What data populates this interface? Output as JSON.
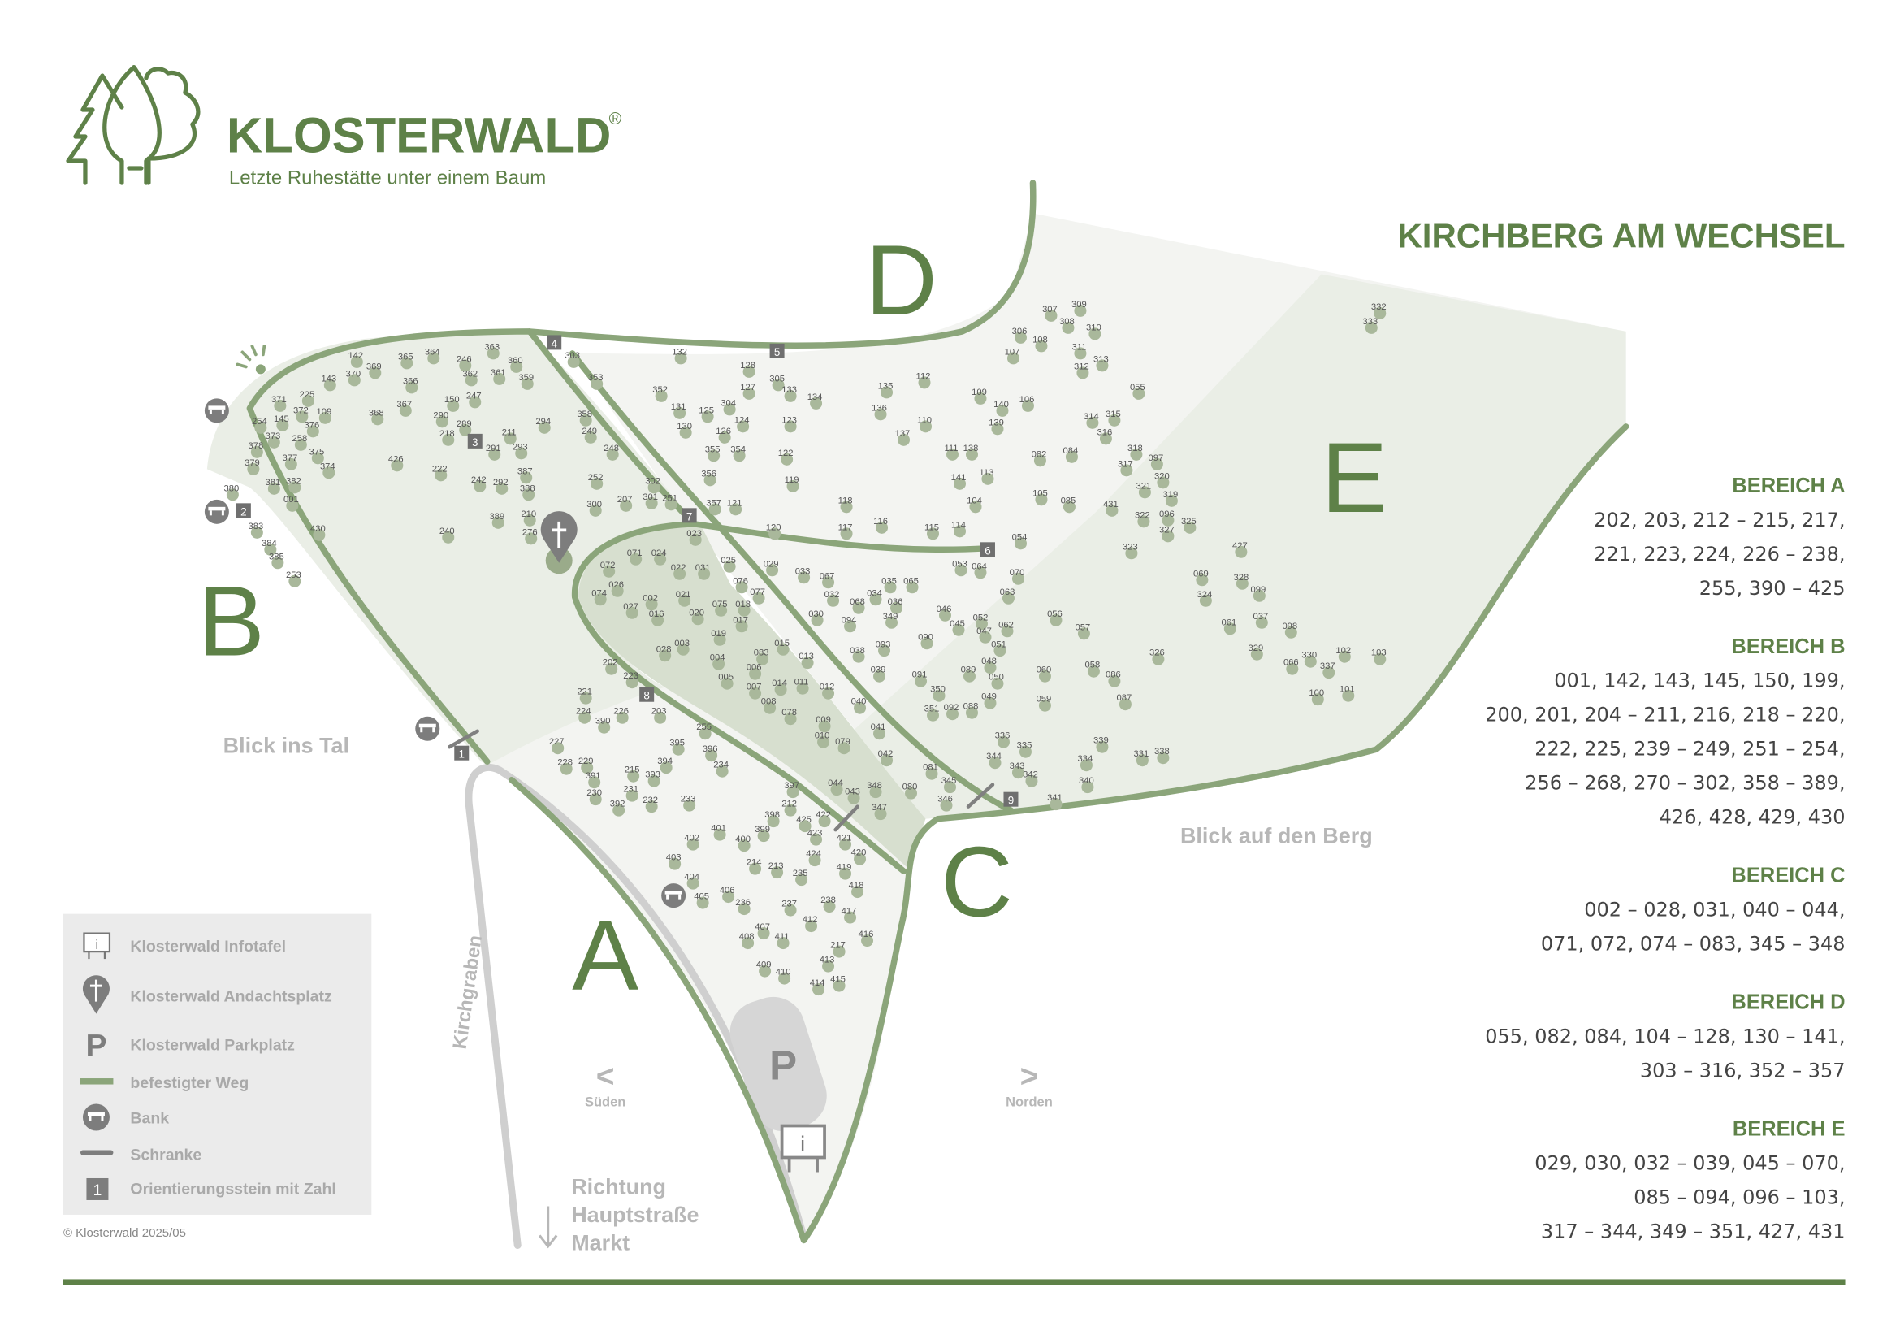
{
  "brand": {
    "name": "KLOSTERWALD",
    "registered": "®",
    "tagline": "Letzte Ruhestätte unter einem Baum"
  },
  "location_title": "KIRCHBERG AM WECHSEL",
  "colors": {
    "brand_green": "#5e8148",
    "path_green": "#8ba57a",
    "area_light": "#eaeee6",
    "area_dark": "#d7dfcf",
    "road_grey": "#cfcfcf",
    "legend_bg": "#ebebeb"
  },
  "areas": {
    "A": "A",
    "B": "B",
    "C": "C",
    "D": "D",
    "E": "E"
  },
  "labels": {
    "view_valley": "Blick ins Tal",
    "view_mountain": "Blick auf den Berg",
    "ditch": "Kirchgraben",
    "south_arrow": "<",
    "south": "Süden",
    "north_arrow": ">",
    "north": "Norden",
    "direction": [
      "Richtung",
      "Hauptstraße",
      "Markt"
    ],
    "parking": "P",
    "info": "i"
  },
  "orientation_stones": [
    "1",
    "2",
    "3",
    "4",
    "5",
    "6",
    "7",
    "8",
    "9"
  ],
  "legend": {
    "items": [
      {
        "icon": "info-board-icon",
        "label": "Klosterwald Infotafel"
      },
      {
        "icon": "cross-pin-icon",
        "label": "Klosterwald Andachtsplatz"
      },
      {
        "icon": "parking-icon",
        "label": "Klosterwald Parkplatz"
      },
      {
        "icon": "paved-path-icon",
        "label": "befestigter Weg"
      },
      {
        "icon": "bench-icon",
        "label": "Bank"
      },
      {
        "icon": "barrier-icon",
        "label": "Schranke"
      },
      {
        "icon": "orientation-stone-icon",
        "label": "Orientierungsstein mit Zahl",
        "stone": "1"
      }
    ]
  },
  "copyright": "© Klosterwald 2025/05",
  "bereiche": [
    {
      "title": "BEREICH A",
      "lines": [
        "202, 203, 212 – 215, 217,",
        "221, 223, 224, 226 – 238,",
        "255, 390 – 425"
      ]
    },
    {
      "title": "BEREICH B",
      "lines": [
        "001, 142, 143, 145, 150, 199,",
        "200, 201, 204 – 211, 216, 218 – 220,",
        "222, 225, 239 – 249, 251 – 254,",
        "256 – 268, 270 – 302, 358 – 389,",
        "426, 428, 429, 430"
      ]
    },
    {
      "title": "BEREICH C",
      "lines": [
        "002 – 028, 031, 040 – 044,",
        "071, 072, 074 – 083, 345 – 348"
      ]
    },
    {
      "title": "BEREICH D",
      "lines": [
        "055, 082, 084, 104 – 128, 130 – 141,",
        "303 – 316, 352 – 357"
      ]
    },
    {
      "title": "BEREICH E",
      "lines": [
        "029, 030, 032 – 039, 045 – 070,",
        "085 – 094, 096 – 103,",
        "317 – 344, 349 – 351, 427, 431"
      ]
    }
  ],
  "trees": [
    "142",
    "369",
    "365",
    "364",
    "246",
    "363",
    "360",
    "362",
    "361",
    "359",
    "143",
    "370",
    "366",
    "371",
    "225",
    "372",
    "109",
    "254",
    "145",
    "376",
    "373",
    "258",
    "378",
    "377",
    "375",
    "379",
    "374",
    "381",
    "382",
    "380",
    "001",
    "383",
    "430",
    "384",
    "385",
    "253",
    "368",
    "367",
    "150",
    "247",
    "290",
    "289",
    "218",
    "211",
    "291",
    "293",
    "294",
    "426",
    "222",
    "242",
    "292",
    "387",
    "388",
    "389",
    "210",
    "276",
    "240",
    "353",
    "303",
    "358",
    "249",
    "248",
    "252",
    "300",
    "207",
    "302",
    "301",
    "251",
    "132",
    "128",
    "305",
    "133",
    "134",
    "352",
    "131",
    "125",
    "304",
    "124",
    "130",
    "126",
    "127",
    "355",
    "354",
    "123",
    "122",
    "356",
    "119",
    "357",
    "121",
    "120",
    "023",
    "072",
    "071",
    "024",
    "022",
    "031",
    "025",
    "029",
    "033",
    "067",
    "026",
    "074",
    "002",
    "021",
    "076",
    "077",
    "075",
    "018",
    "027",
    "016",
    "020",
    "017",
    "030",
    "032",
    "068",
    "034",
    "035",
    "065",
    "036",
    "094",
    "349",
    "046",
    "045",
    "052",
    "047",
    "062",
    "056",
    "057",
    "019",
    "003",
    "028",
    "083",
    "015",
    "013",
    "038",
    "093",
    "090",
    "051",
    "004",
    "006",
    "005",
    "007",
    "014",
    "011",
    "012",
    "039",
    "091",
    "089",
    "048",
    "050",
    "060",
    "058",
    "086",
    "326",
    "350",
    "049",
    "059",
    "087",
    "008",
    "078",
    "040",
    "351",
    "092",
    "088",
    "009",
    "041",
    "010",
    "079",
    "336",
    "335",
    "344",
    "343",
    "342",
    "339",
    "334",
    "331",
    "338",
    "340",
    "341",
    "081",
    "345",
    "080",
    "346",
    "042",
    "044",
    "043",
    "348",
    "347",
    "255",
    "395",
    "396",
    "234",
    "394",
    "215",
    "393",
    "231",
    "232",
    "233",
    "392",
    "227",
    "228",
    "229",
    "391",
    "230",
    "202",
    "223",
    "221",
    "224",
    "226",
    "390",
    "203",
    "397",
    "212",
    "398",
    "425",
    "422",
    "423",
    "421",
    "399",
    "401",
    "400",
    "402",
    "403",
    "424",
    "420",
    "419",
    "214",
    "213",
    "235",
    "418",
    "404",
    "405",
    "406",
    "236",
    "237",
    "238",
    "412",
    "417",
    "407",
    "411",
    "416",
    "408",
    "217",
    "413",
    "409",
    "410",
    "414",
    "415",
    "307",
    "309",
    "306",
    "308",
    "310",
    "108",
    "107",
    "311",
    "313",
    "312",
    "055",
    "135",
    "112",
    "109",
    "140",
    "106",
    "136",
    "110",
    "139",
    "137",
    "314",
    "315",
    "316",
    "111",
    "138",
    "082",
    "084",
    "318",
    "097",
    "317",
    "320",
    "321",
    "319",
    "141",
    "113",
    "105",
    "085",
    "431",
    "104",
    "118",
    "117",
    "116",
    "115",
    "114",
    "322",
    "096",
    "325",
    "327",
    "323",
    "054",
    "053",
    "064",
    "070",
    "063",
    "427",
    "069",
    "328",
    "324",
    "099",
    "061",
    "037",
    "098",
    "329",
    "330",
    "102",
    "103",
    "066",
    "337",
    "100",
    "101",
    "332",
    "333"
  ]
}
